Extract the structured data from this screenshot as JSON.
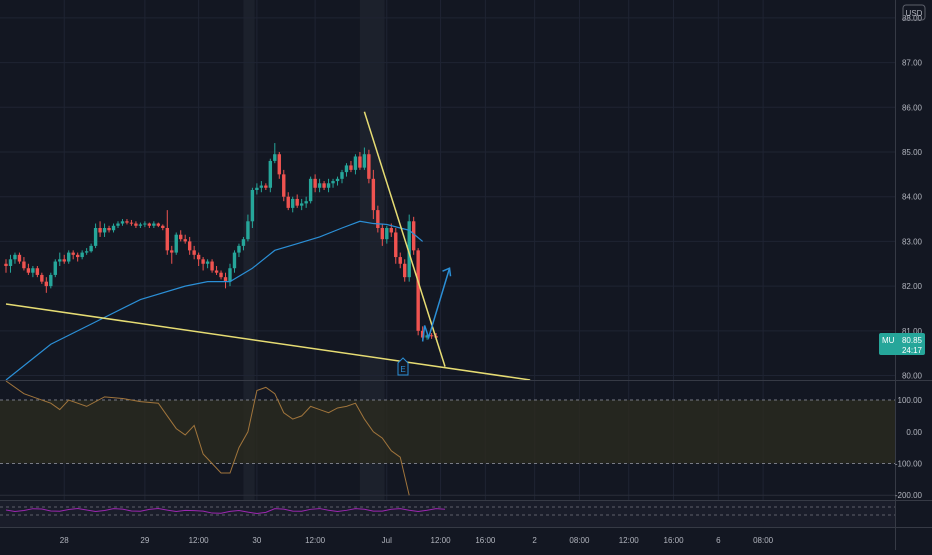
{
  "chart_data": {
    "type": "candlestick",
    "symbol": "MU",
    "currency": "USD",
    "last_price": "80.85",
    "countdown": "24:17",
    "earnings_marker": "E",
    "price_axis": {
      "ylim": [
        79.9,
        88.4
      ],
      "ticks": [
        "88.00",
        "87.00",
        "86.00",
        "85.00",
        "84.00",
        "83.00",
        "82.00",
        "81.00",
        "80.00"
      ],
      "tick_values": [
        88,
        87,
        86,
        85,
        84,
        83,
        82,
        81,
        80
      ]
    },
    "x_axis": {
      "bar_count": 200,
      "ticks": [
        {
          "label": "28",
          "bar": 13
        },
        {
          "label": "29",
          "bar": 31
        },
        {
          "label": "12:00",
          "bar": 43
        },
        {
          "label": "30",
          "bar": 56
        },
        {
          "label": "12:00",
          "bar": 69
        },
        {
          "label": "Jul",
          "bar": 85
        },
        {
          "label": "12:00",
          "bar": 97
        },
        {
          "label": "16:00",
          "bar": 107
        },
        {
          "label": "2",
          "bar": 118
        },
        {
          "label": "08:00",
          "bar": 128
        },
        {
          "label": "12:00",
          "bar": 139
        },
        {
          "label": "16:00",
          "bar": 149
        },
        {
          "label": "6",
          "bar": 159
        },
        {
          "label": "08:00",
          "bar": 169
        }
      ]
    },
    "session_bands": [
      [
        53,
        55.5
      ],
      [
        79,
        84.5
      ]
    ],
    "candles": [
      [
        82.5,
        82.6,
        82.3,
        82.45
      ],
      [
        82.45,
        82.7,
        82.3,
        82.6
      ],
      [
        82.6,
        82.75,
        82.5,
        82.7
      ],
      [
        82.7,
        82.75,
        82.5,
        82.55
      ],
      [
        82.55,
        82.65,
        82.35,
        82.4
      ],
      [
        82.4,
        82.5,
        82.25,
        82.3
      ],
      [
        82.3,
        82.45,
        82.2,
        82.4
      ],
      [
        82.4,
        82.45,
        82.2,
        82.25
      ],
      [
        82.25,
        82.3,
        82.05,
        82.1
      ],
      [
        82.1,
        82.2,
        81.85,
        82.0
      ],
      [
        82.0,
        82.3,
        81.95,
        82.25
      ],
      [
        82.25,
        82.6,
        82.2,
        82.55
      ],
      [
        82.55,
        82.75,
        82.45,
        82.6
      ],
      [
        82.6,
        82.7,
        82.5,
        82.55
      ],
      [
        82.55,
        82.8,
        82.5,
        82.75
      ],
      [
        82.75,
        82.8,
        82.6,
        82.7
      ],
      [
        82.7,
        82.75,
        82.55,
        82.65
      ],
      [
        82.65,
        82.8,
        82.6,
        82.75
      ],
      [
        82.75,
        82.85,
        82.7,
        82.78
      ],
      [
        82.78,
        82.95,
        82.75,
        82.9
      ],
      [
        82.9,
        83.4,
        82.85,
        83.3
      ],
      [
        83.3,
        83.45,
        83.1,
        83.2
      ],
      [
        83.2,
        83.4,
        83.1,
        83.3
      ],
      [
        83.3,
        83.35,
        83.2,
        83.25
      ],
      [
        83.25,
        83.4,
        83.2,
        83.35
      ],
      [
        83.35,
        83.45,
        83.3,
        83.4
      ],
      [
        83.4,
        83.5,
        83.35,
        83.45
      ],
      [
        83.45,
        83.5,
        83.38,
        83.42
      ],
      [
        83.42,
        83.48,
        83.35,
        83.4
      ],
      [
        83.4,
        83.45,
        83.3,
        83.35
      ],
      [
        83.35,
        83.42,
        83.3,
        83.38
      ],
      [
        83.38,
        83.45,
        83.32,
        83.4
      ],
      [
        83.4,
        83.42,
        83.3,
        83.35
      ],
      [
        83.35,
        83.45,
        83.3,
        83.4
      ],
      [
        83.4,
        83.42,
        83.32,
        83.35
      ],
      [
        83.35,
        83.38,
        83.25,
        83.3
      ],
      [
        83.3,
        83.7,
        82.7,
        82.8
      ],
      [
        82.8,
        82.9,
        82.5,
        82.75
      ],
      [
        82.75,
        83.2,
        82.7,
        83.15
      ],
      [
        83.15,
        83.25,
        83.0,
        83.05
      ],
      [
        83.05,
        83.15,
        82.95,
        83.0
      ],
      [
        83.0,
        83.1,
        82.7,
        82.8
      ],
      [
        82.8,
        82.9,
        82.6,
        82.7
      ],
      [
        82.7,
        82.75,
        82.45,
        82.6
      ],
      [
        82.6,
        82.65,
        82.35,
        82.5
      ],
      [
        82.5,
        82.6,
        82.4,
        82.55
      ],
      [
        82.55,
        82.6,
        82.3,
        82.35
      ],
      [
        82.35,
        82.45,
        82.25,
        82.3
      ],
      [
        82.3,
        82.35,
        82.15,
        82.2
      ],
      [
        82.2,
        82.3,
        81.95,
        82.1
      ],
      [
        82.1,
        82.5,
        82.0,
        82.4
      ],
      [
        82.4,
        82.8,
        82.3,
        82.75
      ],
      [
        82.75,
        82.95,
        82.65,
        82.9
      ],
      [
        82.9,
        83.1,
        82.8,
        83.05
      ],
      [
        83.05,
        83.6,
        83.0,
        83.45
      ],
      [
        83.45,
        84.2,
        83.3,
        84.15
      ],
      [
        84.15,
        84.3,
        84.05,
        84.2
      ],
      [
        84.2,
        84.35,
        84.1,
        84.25
      ],
      [
        84.25,
        84.3,
        84.15,
        84.2
      ],
      [
        84.2,
        84.85,
        84.1,
        84.8
      ],
      [
        84.8,
        85.2,
        84.75,
        84.95
      ],
      [
        84.95,
        85.0,
        84.4,
        84.5
      ],
      [
        84.5,
        84.6,
        83.9,
        84.0
      ],
      [
        84.0,
        84.1,
        83.7,
        83.75
      ],
      [
        83.75,
        84.0,
        83.65,
        83.95
      ],
      [
        83.95,
        84.05,
        83.75,
        83.8
      ],
      [
        83.8,
        83.95,
        83.7,
        83.85
      ],
      [
        83.85,
        84.0,
        83.75,
        83.9
      ],
      [
        83.9,
        84.45,
        83.85,
        84.4
      ],
      [
        84.4,
        84.5,
        84.1,
        84.2
      ],
      [
        84.2,
        84.4,
        84.1,
        84.3
      ],
      [
        84.3,
        84.35,
        84.15,
        84.2
      ],
      [
        84.2,
        84.4,
        84.1,
        84.3
      ],
      [
        84.3,
        84.4,
        84.2,
        84.35
      ],
      [
        84.35,
        84.45,
        84.25,
        84.4
      ],
      [
        84.4,
        84.6,
        84.3,
        84.55
      ],
      [
        84.55,
        84.75,
        84.45,
        84.7
      ],
      [
        84.7,
        84.8,
        84.55,
        84.6
      ],
      [
        84.6,
        84.95,
        84.5,
        84.9
      ],
      [
        84.9,
        85.0,
        84.6,
        84.65
      ],
      [
        84.65,
        85.1,
        84.6,
        84.95
      ],
      [
        84.95,
        85.05,
        84.3,
        84.4
      ],
      [
        84.4,
        84.6,
        83.5,
        83.7
      ],
      [
        83.7,
        83.8,
        83.2,
        83.3
      ],
      [
        83.3,
        83.4,
        82.9,
        83.05
      ],
      [
        83.05,
        83.35,
        82.95,
        83.3
      ],
      [
        83.3,
        83.4,
        83.1,
        83.2
      ],
      [
        83.2,
        83.3,
        82.5,
        82.65
      ],
      [
        82.65,
        82.75,
        82.4,
        82.5
      ],
      [
        82.5,
        82.6,
        82.1,
        82.2
      ],
      [
        82.2,
        83.6,
        82.1,
        83.45
      ],
      [
        83.45,
        83.55,
        82.7,
        82.8
      ],
      [
        82.8,
        82.85,
        80.9,
        81.0
      ],
      [
        81.0,
        81.1,
        80.8,
        80.85
      ],
      [
        80.85,
        80.95,
        80.8,
        80.9
      ],
      [
        80.9,
        80.95,
        80.82,
        80.88
      ],
      [
        80.88,
        80.95,
        80.8,
        80.85
      ]
    ],
    "moving_average": [
      [
        0,
        79.9
      ],
      [
        10,
        80.7
      ],
      [
        20,
        81.2
      ],
      [
        30,
        81.7
      ],
      [
        40,
        82.0
      ],
      [
        45,
        82.1
      ],
      [
        50,
        82.1
      ],
      [
        55,
        82.4
      ],
      [
        60,
        82.8
      ],
      [
        65,
        82.95
      ],
      [
        70,
        83.1
      ],
      [
        75,
        83.3
      ],
      [
        79,
        83.45
      ],
      [
        82,
        83.4
      ],
      [
        85,
        83.38
      ],
      [
        88,
        83.3
      ],
      [
        90,
        83.25
      ],
      [
        93,
        83.0
      ]
    ],
    "drawings": {
      "trendline_lower": [
        [
          0,
          81.6
        ],
        [
          117,
          79.9
        ]
      ],
      "trendline_upper": [
        [
          80,
          85.9
        ],
        [
          98,
          80.2
        ]
      ],
      "projection_arrow": [
        [
          93,
          80.85
        ],
        [
          99,
          82.4
        ]
      ]
    },
    "oscillator": {
      "ticks": [
        "100.00",
        "0.00",
        "-100.00",
        "-200.00"
      ],
      "tick_values": [
        100,
        0,
        -100,
        -200
      ],
      "ylim": [
        -215,
        160
      ],
      "band": [
        -100,
        100
      ],
      "values": [
        [
          0,
          160
        ],
        [
          4,
          120
        ],
        [
          8,
          100
        ],
        [
          10,
          90
        ],
        [
          12,
          70
        ],
        [
          14,
          100
        ],
        [
          18,
          80
        ],
        [
          22,
          110
        ],
        [
          26,
          105
        ],
        [
          30,
          95
        ],
        [
          34,
          90
        ],
        [
          36,
          50
        ],
        [
          38,
          10
        ],
        [
          40,
          -10
        ],
        [
          42,
          20
        ],
        [
          44,
          -70
        ],
        [
          46,
          -100
        ],
        [
          48,
          -130
        ],
        [
          50,
          -130
        ],
        [
          52,
          -50
        ],
        [
          54,
          0
        ],
        [
          56,
          130
        ],
        [
          58,
          140
        ],
        [
          60,
          120
        ],
        [
          62,
          60
        ],
        [
          64,
          40
        ],
        [
          66,
          50
        ],
        [
          68,
          80
        ],
        [
          70,
          70
        ],
        [
          72,
          60
        ],
        [
          74,
          75
        ],
        [
          76,
          80
        ],
        [
          78,
          90
        ],
        [
          80,
          40
        ],
        [
          82,
          0
        ],
        [
          84,
          -20
        ],
        [
          86,
          -60
        ],
        [
          88,
          -80
        ],
        [
          90,
          -200
        ]
      ]
    },
    "volume_panel": {
      "ylim": [
        0,
        1
      ]
    },
    "colors": {
      "background": "#131722",
      "grid": "#1f2433",
      "up": "#26a69a",
      "down": "#ef5350",
      "moving_average": "#2b8fd6",
      "trendline": "#e6dc73",
      "arrow": "#2b8fd6",
      "oscillator": "#a1753c",
      "band_fill": "#2b2a1f",
      "volume_line": "#9c27b0",
      "axis_text": "#b2b5be",
      "price_tag": "#26a69a"
    }
  }
}
